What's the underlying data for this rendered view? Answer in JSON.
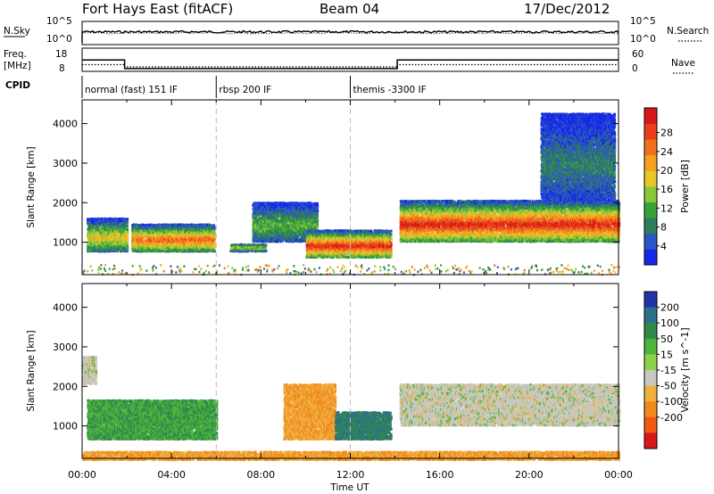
{
  "header": {
    "station": "Fort Hays East (fitACF)",
    "beam": "Beam 04",
    "date": "17/Dec/2012"
  },
  "panels": {
    "nsky_label": "N.Sky",
    "nsearch_label": "N.Search",
    "freq_label_1": "Freq.",
    "freq_label_2": "[MHz]",
    "nave_label": "Nave",
    "cpid_label": "CPID",
    "nsky_ticks": [
      "10^5",
      "10^0"
    ],
    "nsearch_ticks": [
      "10^5",
      "10^0"
    ],
    "freq_ticks": [
      "18",
      "8"
    ],
    "nave_ticks": [
      "60",
      "0"
    ]
  },
  "cpid": [
    {
      "name": "normal (fast) 151 IF",
      "start": 0,
      "end": 6
    },
    {
      "name": "rbsp 200 IF",
      "start": 6,
      "end": 12
    },
    {
      "name": "themis -3300 IF",
      "start": 12,
      "end": 24
    }
  ],
  "axes": {
    "ylabel": "Slant Range [km]",
    "xlabel": "Time UT",
    "y_ticks": [
      "1000",
      "2000",
      "3000",
      "4000"
    ],
    "x_ticks": [
      "00:00",
      "04:00",
      "08:00",
      "12:00",
      "16:00",
      "20:00",
      "00:00"
    ]
  },
  "colorbars": {
    "power": {
      "label": "Power [dB]",
      "ticks": [
        "4",
        "8",
        "12",
        "16",
        "20",
        "24",
        "28"
      ],
      "colors": [
        "#1428e6",
        "#2c55c8",
        "#2e7d5c",
        "#3aa13a",
        "#88c83a",
        "#e8c72a",
        "#f5a020",
        "#f07020",
        "#e8401c",
        "#d81818"
      ]
    },
    "velocity": {
      "label": "Velocity [m s^-1]",
      "ticks": [
        "200",
        "100",
        "50",
        "15",
        "-15",
        "-50",
        "-100",
        "-200"
      ],
      "colors": [
        "#2233aa",
        "#2e6e8c",
        "#2f8a4a",
        "#4fb43c",
        "#8fd24a",
        "#c8c8c0",
        "#f0b040",
        "#f08a1e",
        "#f05a14",
        "#d81818"
      ]
    }
  },
  "chart_data": {
    "type": "heatmap",
    "x": "time UT (hours)",
    "xlim": [
      0,
      24
    ],
    "ylim": [
      180,
      4600
    ],
    "frequency_mhz": [
      {
        "start": 0,
        "end": 1.9,
        "value": 12.9
      },
      {
        "start": 1.9,
        "end": 14.1,
        "value": 9.2
      },
      {
        "start": 14.1,
        "end": 24,
        "value": 12.9
      }
    ],
    "power_regions": [
      {
        "t0": 0.2,
        "t1": 2.0,
        "r0": 800,
        "r1": 1650,
        "peak": 18
      },
      {
        "t0": 2.2,
        "t1": 5.9,
        "r0": 800,
        "r1": 1500,
        "peak": 24
      },
      {
        "t0": 6.6,
        "t1": 8.2,
        "r0": 800,
        "r1": 1000,
        "peak": 16
      },
      {
        "t0": 7.6,
        "t1": 10.5,
        "r0": 1050,
        "r1": 2050,
        "peak": 12
      },
      {
        "t0": 10.0,
        "t1": 13.8,
        "r0": 650,
        "r1": 1350,
        "peak": 28
      },
      {
        "t0": 14.2,
        "t1": 24.0,
        "r0": 1050,
        "r1": 2100,
        "peak": 28
      },
      {
        "t0": 20.5,
        "t1": 23.8,
        "r0": 2100,
        "r1": 4300,
        "peak": 8
      }
    ],
    "velocity_regions": [
      {
        "t0": 0.2,
        "t1": 6.0,
        "r0": 700,
        "r1": 1700,
        "v": 50
      },
      {
        "t0": 0.0,
        "t1": 0.6,
        "r0": 2100,
        "r1": 2800,
        "v": 0
      },
      {
        "t0": 9.0,
        "t1": 11.3,
        "r0": 700,
        "r1": 2100,
        "v": -50
      },
      {
        "t0": 11.3,
        "t1": 13.8,
        "r0": 700,
        "r1": 1400,
        "v": 100
      },
      {
        "t0": 14.2,
        "t1": 24.0,
        "r0": 1050,
        "r1": 2100,
        "v": 0
      },
      {
        "t0": 0.0,
        "t1": 24.0,
        "r0": 180,
        "r1": 400,
        "v": -50
      }
    ]
  }
}
